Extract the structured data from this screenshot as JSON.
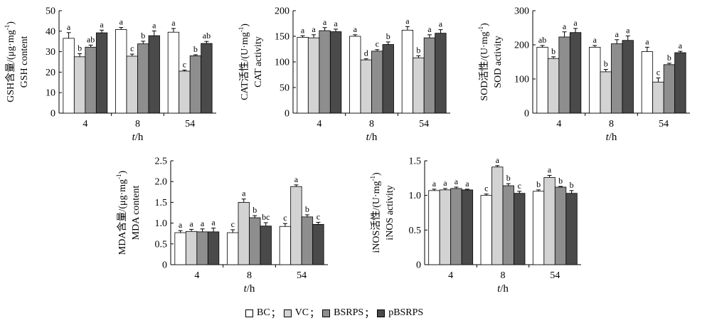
{
  "colors": {
    "BC": "#ffffff",
    "VC": "#d3d3d3",
    "BSRPS": "#8e8e8e",
    "pBSRPS": "#4a4a4a",
    "axis": "#000000"
  },
  "legend": {
    "items": [
      "BC",
      "VC",
      "BSRPS",
      "pBSRPS"
    ],
    "separator": "；"
  },
  "chart_data": [
    {
      "type": "bar",
      "ylabel_cn": "GSH含量/(μg·mg",
      "ylabel_sup": "-1",
      "ylabel_tail": ")",
      "ylabel_en": "GSH content",
      "xlabel_t": "t",
      "xlabel_unit": "/h",
      "ylim": [
        0,
        50
      ],
      "yticks": [
        "0",
        "10",
        "20",
        "30",
        "40",
        "50"
      ],
      "categories": [
        "4",
        "8",
        "54"
      ],
      "series": [
        {
          "name": "BC",
          "values": [
            36.5,
            40.8,
            39.5
          ],
          "errors": [
            2.8,
            1.0,
            1.8
          ],
          "letters": [
            "a",
            "a",
            "a"
          ]
        },
        {
          "name": "VC",
          "values": [
            27.5,
            27.8,
            20.5
          ],
          "errors": [
            1.5,
            1.0,
            0.5
          ],
          "letters": [
            "b",
            "c",
            "c"
          ]
        },
        {
          "name": "BSRPS",
          "values": [
            32.2,
            33.8,
            28.0
          ],
          "errors": [
            1.0,
            1.3,
            0.5
          ],
          "letters": [
            "ab",
            "b",
            "b"
          ]
        },
        {
          "name": "pBSRPS",
          "values": [
            39.2,
            37.8,
            34.0
          ],
          "errors": [
            1.3,
            2.3,
            1.0
          ],
          "letters": [
            "a",
            "a",
            "ab"
          ]
        }
      ]
    },
    {
      "type": "bar",
      "ylabel_cn": "CAT活性/(U·mg",
      "ylabel_sup": "-1",
      "ylabel_tail": ")",
      "ylabel_en": "CAT activity",
      "xlabel_t": "t",
      "xlabel_unit": "/h",
      "ylim": [
        0,
        200
      ],
      "yticks": [
        "0",
        "50",
        "100",
        "150",
        "200"
      ],
      "categories": [
        "4",
        "8",
        "54"
      ],
      "series": [
        {
          "name": "BC",
          "values": [
            148,
            150,
            162
          ],
          "errors": [
            3,
            3,
            7
          ],
          "letters": [
            "a",
            "a",
            "a"
          ]
        },
        {
          "name": "VC",
          "values": [
            147,
            104,
            108
          ],
          "errors": [
            6,
            2,
            4
          ],
          "letters": [
            "a",
            "d",
            "b"
          ]
        },
        {
          "name": "BSRPS",
          "values": [
            161,
            121,
            147
          ],
          "errors": [
            6,
            3,
            6
          ],
          "letters": [
            "a",
            "c",
            "a"
          ]
        },
        {
          "name": "pBSRPS",
          "values": [
            159,
            134,
            156
          ],
          "errors": [
            5,
            5,
            7
          ],
          "letters": [
            "a",
            "b",
            "a"
          ]
        }
      ]
    },
    {
      "type": "bar",
      "ylabel_cn": "SOD活性/(U·mg",
      "ylabel_sup": "-1",
      "ylabel_tail": ")",
      "ylabel_en": "SOD activity",
      "xlabel_t": "t",
      "xlabel_unit": "/h",
      "ylim": [
        0,
        300
      ],
      "yticks": [
        "0",
        "100",
        "200",
        "300"
      ],
      "categories": [
        "4",
        "8",
        "54"
      ],
      "series": [
        {
          "name": "BC",
          "values": [
            193,
            193,
            180
          ],
          "errors": [
            5,
            5,
            13
          ],
          "letters": [
            "ab",
            "a",
            "a"
          ]
        },
        {
          "name": "VC",
          "values": [
            160,
            121,
            91
          ],
          "errors": [
            5,
            7,
            12
          ],
          "letters": [
            "b",
            "b",
            "c"
          ]
        },
        {
          "name": "BSRPS",
          "values": [
            223,
            203,
            142
          ],
          "errors": [
            15,
            12,
            4
          ],
          "letters": [
            "a",
            "a",
            "b"
          ]
        },
        {
          "name": "pBSRPS",
          "values": [
            236,
            213,
            177
          ],
          "errors": [
            12,
            13,
            4
          ],
          "letters": [
            "a",
            "a",
            "a"
          ]
        }
      ]
    },
    {
      "type": "bar",
      "ylabel_cn": "MDA含量/(μg·mg",
      "ylabel_sup": "-1",
      "ylabel_tail": ")",
      "ylabel_en": "MDA content",
      "xlabel_t": "t",
      "xlabel_unit": "/h",
      "ylim": [
        0,
        2.5
      ],
      "yticks": [
        "0",
        "0.5",
        "1.0",
        "1.5",
        "2.0",
        "2.5"
      ],
      "categories": [
        "4",
        "8",
        "54"
      ],
      "series": [
        {
          "name": "BC",
          "values": [
            0.77,
            0.77,
            0.92
          ],
          "errors": [
            0.05,
            0.07,
            0.07
          ],
          "letters": [
            "a",
            "c",
            "c"
          ]
        },
        {
          "name": "VC",
          "values": [
            0.8,
            1.5,
            1.88
          ],
          "errors": [
            0.05,
            0.08,
            0.04
          ],
          "letters": [
            "a",
            "a",
            "a"
          ]
        },
        {
          "name": "BSRPS",
          "values": [
            0.79,
            1.13,
            1.15
          ],
          "errors": [
            0.07,
            0.05,
            0.05
          ],
          "letters": [
            "a",
            "b",
            "b"
          ]
        },
        {
          "name": "pBSRPS",
          "values": [
            0.79,
            0.93,
            0.97
          ],
          "errors": [
            0.09,
            0.08,
            0.05
          ],
          "letters": [
            "a",
            "bc",
            "c"
          ]
        }
      ]
    },
    {
      "type": "bar",
      "ylabel_cn": "iNOS活性/(U·mg",
      "ylabel_sup": "-1",
      "ylabel_tail": ")",
      "ylabel_en": "iNOS activity",
      "xlabel_t": "t",
      "xlabel_unit": "/h",
      "ylim": [
        0,
        1.5
      ],
      "yticks": [
        "0",
        "0.5",
        "1.0",
        "1.5"
      ],
      "categories": [
        "4",
        "8",
        "54"
      ],
      "series": [
        {
          "name": "BC",
          "values": [
            1.07,
            1.0,
            1.06
          ],
          "errors": [
            0.02,
            0.02,
            0.02
          ],
          "letters": [
            "a",
            "c",
            "b"
          ]
        },
        {
          "name": "VC",
          "values": [
            1.08,
            1.41,
            1.26
          ],
          "errors": [
            0.02,
            0.02,
            0.03
          ],
          "letters": [
            "a",
            "a",
            "a"
          ]
        },
        {
          "name": "BSRPS",
          "values": [
            1.1,
            1.14,
            1.12
          ],
          "errors": [
            0.02,
            0.03,
            0.01
          ],
          "letters": [
            "a",
            "b",
            "b"
          ]
        },
        {
          "name": "pBSRPS",
          "values": [
            1.08,
            1.03,
            1.03
          ],
          "errors": [
            0.01,
            0.03,
            0.04
          ],
          "letters": [
            "a",
            "c",
            "b"
          ]
        }
      ]
    }
  ]
}
